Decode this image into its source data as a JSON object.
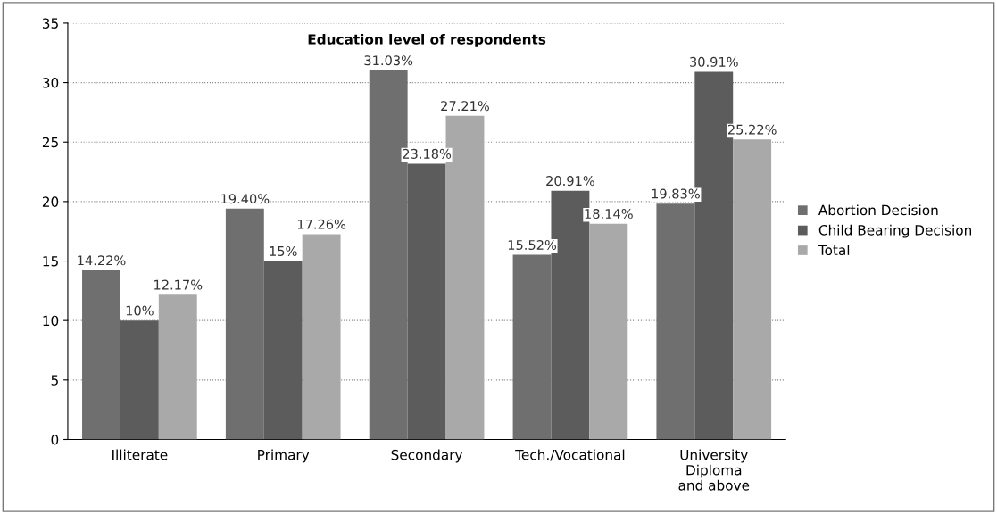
{
  "chart_data": {
    "type": "bar",
    "title": "Education level of respondents",
    "categories": [
      "Illiterate",
      "Primary",
      "Secondary",
      "Tech./Vocational",
      "University\nDiploma\nand above"
    ],
    "series": [
      {
        "name": "Abortion Decision",
        "color": "#6f6f6f",
        "values": [
          14.22,
          19.4,
          31.03,
          15.52,
          19.83
        ],
        "value_labels": [
          "14.22%",
          "19.40%",
          "31.03%",
          "15.52%",
          "19.83%"
        ]
      },
      {
        "name": "Child Bearing Decision",
        "color": "#5c5c5c",
        "values": [
          10,
          15,
          23.18,
          20.91,
          30.91
        ],
        "value_labels": [
          "10%",
          "15%",
          "23.18%",
          "20.91%",
          "30.91%"
        ]
      },
      {
        "name": "Total",
        "color": "#a9a9a9",
        "values": [
          12.17,
          17.26,
          27.21,
          18.14,
          25.22
        ],
        "value_labels": [
          "12.17%",
          "17.26%",
          "27.21%",
          "18.14%",
          "25.22%"
        ]
      }
    ],
    "ylim": [
      0,
      35
    ],
    "yticks": [
      0,
      5,
      10,
      15,
      20,
      25,
      30,
      35
    ],
    "grid": "y",
    "legend": "right"
  }
}
